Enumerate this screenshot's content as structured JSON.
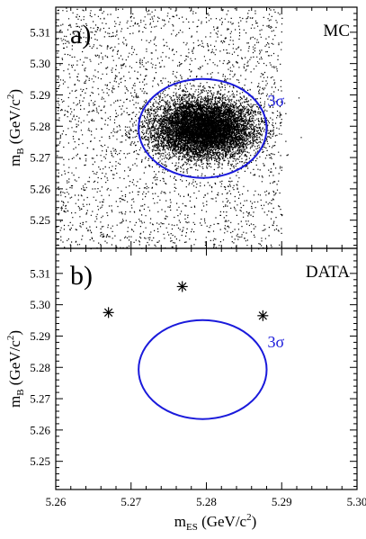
{
  "chart_data": [
    {
      "type": "scatter",
      "panel_label": "a)",
      "annotation": "MC",
      "xlim": [
        5.26,
        5.3
      ],
      "ylim": [
        5.241,
        5.318
      ],
      "x_ticks": [
        "5.26",
        "5.27",
        "5.28",
        "5.29",
        "5.30"
      ],
      "y_ticks": [
        "5.25",
        "5.26",
        "5.27",
        "5.28",
        "5.29",
        "5.30",
        "5.31"
      ],
      "ylabel": {
        "main": "m",
        "sub": "B",
        "unit": " (GeV/c",
        "sup": "2",
        "close": ")"
      },
      "distribution": {
        "description": "dense Gaussian core plus flat background",
        "core_center": [
          5.2795,
          5.2795
        ],
        "core_sigma": [
          0.0033,
          0.0046
        ],
        "background_x_range": [
          5.26,
          5.29
        ]
      },
      "ellipse": {
        "center": [
          5.2795,
          5.2793
        ],
        "radii": [
          0.0085,
          0.0158
        ],
        "label": "3σ",
        "color": "#1a1adb"
      }
    },
    {
      "type": "scatter",
      "panel_label": "b)",
      "annotation": "DATA",
      "xlim": [
        5.26,
        5.3
      ],
      "ylim": [
        5.241,
        5.318
      ],
      "x_ticks": [
        "5.26",
        "5.27",
        "5.28",
        "5.29",
        "5.30"
      ],
      "y_ticks": [
        "5.25",
        "5.26",
        "5.27",
        "5.28",
        "5.29",
        "5.30",
        "5.31"
      ],
      "xlabel": {
        "main": "m",
        "sub": "ES",
        "unit": " (GeV/c",
        "sup": "2",
        "close": ")"
      },
      "ylabel": {
        "main": "m",
        "sub": "B",
        "unit": " (GeV/c",
        "sup": "2",
        "close": ")"
      },
      "points": [
        {
          "x": 5.267,
          "y": 5.2975
        },
        {
          "x": 5.2768,
          "y": 5.3058
        },
        {
          "x": 5.2875,
          "y": 5.2965
        }
      ],
      "ellipse": {
        "center": [
          5.2795,
          5.2793
        ],
        "radii": [
          0.0085,
          0.0158
        ],
        "label": "3σ",
        "color": "#1a1adb"
      }
    }
  ]
}
